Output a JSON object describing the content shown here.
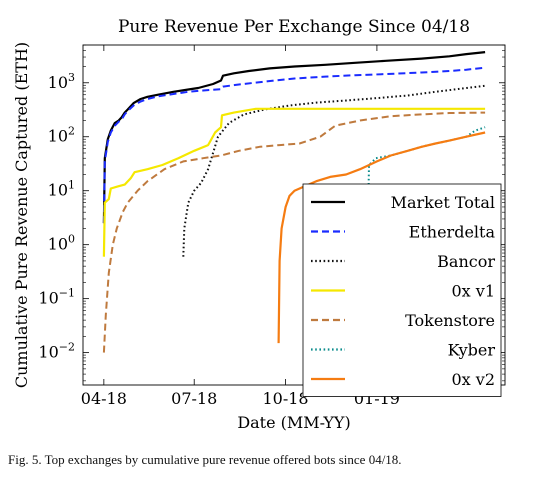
{
  "caption": "Fig. 5.  Top exchanges by cumulative pure revenue offered bots since 04/18.",
  "chart_data": {
    "type": "line",
    "title": "Pure Revenue Per Exchange Since 04/18",
    "xlabel": "Date (MM-YY)",
    "ylabel": "Cumulative Pure Revenue Captured (ETH)",
    "y_scale": "log",
    "ylim_exponents": [
      -2.6,
      3.7
    ],
    "y_ticks": [
      {
        "base": "10",
        "exp": "3",
        "value": 1000
      },
      {
        "base": "10",
        "exp": "2",
        "value": 100
      },
      {
        "base": "10",
        "exp": "1",
        "value": 10
      },
      {
        "base": "10",
        "exp": "0",
        "value": 1
      },
      {
        "base": "10",
        "exp": "−1",
        "value": 0.1
      },
      {
        "base": "10",
        "exp": "−2",
        "value": 0.01
      }
    ],
    "x_range": [
      "2018-03-11",
      "2019-05-10"
    ],
    "x_ticks": [
      {
        "label": "04-18",
        "date": "2018-04-01"
      },
      {
        "label": "07-18",
        "date": "2018-07-01"
      },
      {
        "label": "10-18",
        "date": "2018-10-01"
      },
      {
        "label": "01-19",
        "date": "2019-01-01"
      }
    ],
    "legend_position": "bottom-right",
    "series": [
      {
        "name": "Market Total",
        "color": "#000000",
        "dash": "solid",
        "points": [
          [
            "2018-04-01",
            2.5
          ],
          [
            "2018-04-02",
            40
          ],
          [
            "2018-04-05",
            90
          ],
          [
            "2018-04-08",
            130
          ],
          [
            "2018-04-12",
            180
          ],
          [
            "2018-04-16",
            200
          ],
          [
            "2018-04-19",
            230
          ],
          [
            "2018-04-22",
            280
          ],
          [
            "2018-04-25",
            320
          ],
          [
            "2018-05-01",
            420
          ],
          [
            "2018-05-08",
            500
          ],
          [
            "2018-05-15",
            550
          ],
          [
            "2018-05-25",
            600
          ],
          [
            "2018-06-10",
            680
          ],
          [
            "2018-06-25",
            750
          ],
          [
            "2018-07-05",
            800
          ],
          [
            "2018-07-20",
            950
          ],
          [
            "2018-07-28",
            1100
          ],
          [
            "2018-07-30",
            1350
          ],
          [
            "2018-08-10",
            1500
          ],
          [
            "2018-08-25",
            1650
          ],
          [
            "2018-09-15",
            1850
          ],
          [
            "2018-10-10",
            2000
          ],
          [
            "2018-11-10",
            2150
          ],
          [
            "2018-12-10",
            2350
          ],
          [
            "2019-01-10",
            2550
          ],
          [
            "2019-02-15",
            2800
          ],
          [
            "2019-03-15",
            3100
          ],
          [
            "2019-04-01",
            3400
          ],
          [
            "2019-04-20",
            3700
          ]
        ]
      },
      {
        "name": "Etherdelta",
        "color": "#1a2bff",
        "dash": "dashed",
        "points": [
          [
            "2018-04-01",
            2.5
          ],
          [
            "2018-04-02",
            35
          ],
          [
            "2018-04-05",
            80
          ],
          [
            "2018-04-08",
            120
          ],
          [
            "2018-04-12",
            160
          ],
          [
            "2018-04-16",
            190
          ],
          [
            "2018-04-19",
            210
          ],
          [
            "2018-04-22",
            260
          ],
          [
            "2018-04-25",
            300
          ],
          [
            "2018-05-01",
            380
          ],
          [
            "2018-05-08",
            450
          ],
          [
            "2018-05-15",
            500
          ],
          [
            "2018-05-25",
            560
          ],
          [
            "2018-06-10",
            620
          ],
          [
            "2018-06-25",
            680
          ],
          [
            "2018-07-10",
            720
          ],
          [
            "2018-07-28",
            760
          ],
          [
            "2018-07-30",
            850
          ],
          [
            "2018-08-15",
            930
          ],
          [
            "2018-09-10",
            1050
          ],
          [
            "2018-10-10",
            1200
          ],
          [
            "2018-11-10",
            1300
          ],
          [
            "2018-12-10",
            1380
          ],
          [
            "2019-01-10",
            1450
          ],
          [
            "2019-02-15",
            1550
          ],
          [
            "2019-03-15",
            1650
          ],
          [
            "2019-04-01",
            1750
          ],
          [
            "2019-04-20",
            1900
          ]
        ]
      },
      {
        "name": "Bancor",
        "color": "#111111",
        "dash": "dotted",
        "points": [
          [
            "2018-06-20",
            0.6
          ],
          [
            "2018-06-21",
            2
          ],
          [
            "2018-06-25",
            6
          ],
          [
            "2018-07-01",
            10
          ],
          [
            "2018-07-08",
            14
          ],
          [
            "2018-07-15",
            25
          ],
          [
            "2018-07-25",
            100
          ],
          [
            "2018-08-05",
            180
          ],
          [
            "2018-08-20",
            260
          ],
          [
            "2018-09-10",
            320
          ],
          [
            "2018-10-05",
            380
          ],
          [
            "2018-11-01",
            430
          ],
          [
            "2018-12-01",
            470
          ],
          [
            "2019-01-01",
            520
          ],
          [
            "2019-02-01",
            580
          ],
          [
            "2019-03-01",
            680
          ],
          [
            "2019-04-01",
            800
          ],
          [
            "2019-04-20",
            880
          ]
        ]
      },
      {
        "name": "0x v1",
        "color": "#f5e800",
        "dash": "solid",
        "points": [
          [
            "2018-04-01",
            0.6
          ],
          [
            "2018-04-02",
            6
          ],
          [
            "2018-04-06",
            7
          ],
          [
            "2018-04-08",
            11
          ],
          [
            "2018-04-15",
            12
          ],
          [
            "2018-04-22",
            13
          ],
          [
            "2018-04-28",
            17
          ],
          [
            "2018-05-02",
            22
          ],
          [
            "2018-05-15",
            25
          ],
          [
            "2018-05-30",
            30
          ],
          [
            "2018-06-15",
            40
          ],
          [
            "2018-07-01",
            55
          ],
          [
            "2018-07-15",
            70
          ],
          [
            "2018-07-22",
            120
          ],
          [
            "2018-07-28",
            150
          ],
          [
            "2018-07-29",
            250
          ],
          [
            "2018-08-10",
            280
          ],
          [
            "2018-09-01",
            330
          ],
          [
            "2018-10-01",
            330
          ],
          [
            "2018-11-01",
            330
          ],
          [
            "2018-12-01",
            330
          ],
          [
            "2019-01-01",
            330
          ],
          [
            "2019-02-01",
            330
          ],
          [
            "2019-03-01",
            330
          ],
          [
            "2019-04-20",
            330
          ]
        ]
      },
      {
        "name": "Tokenstore",
        "color": "#bf7a3e",
        "dash": "dashed",
        "points": [
          [
            "2018-04-01",
            0.01
          ],
          [
            "2018-04-03",
            0.05
          ],
          [
            "2018-04-06",
            0.3
          ],
          [
            "2018-04-10",
            1
          ],
          [
            "2018-04-14",
            2
          ],
          [
            "2018-04-20",
            4
          ],
          [
            "2018-04-25",
            6
          ],
          [
            "2018-05-05",
            10
          ],
          [
            "2018-05-15",
            15
          ],
          [
            "2018-06-01",
            25
          ],
          [
            "2018-06-20",
            35
          ],
          [
            "2018-07-10",
            40
          ],
          [
            "2018-07-28",
            45
          ],
          [
            "2018-08-15",
            55
          ],
          [
            "2018-09-05",
            65
          ],
          [
            "2018-09-25",
            70
          ],
          [
            "2018-10-15",
            75
          ],
          [
            "2018-11-05",
            100
          ],
          [
            "2018-11-20",
            160
          ],
          [
            "2018-12-15",
            200
          ],
          [
            "2019-01-15",
            240
          ],
          [
            "2019-02-15",
            260
          ],
          [
            "2019-03-15",
            275
          ],
          [
            "2019-04-20",
            280
          ]
        ]
      },
      {
        "name": "Kyber",
        "color": "#0b8c8c",
        "dash": "dotted",
        "points": [
          [
            "2018-12-22",
            0.01
          ],
          [
            "2018-12-23",
            3
          ],
          [
            "2018-12-24",
            30
          ],
          [
            "2018-12-31",
            40
          ],
          [
            "2019-01-15",
            45
          ],
          [
            "2019-02-01",
            55
          ],
          [
            "2019-02-15",
            65
          ],
          [
            "2019-03-01",
            75
          ],
          [
            "2019-03-15",
            85
          ],
          [
            "2019-04-01",
            100
          ],
          [
            "2019-04-10",
            130
          ],
          [
            "2019-04-20",
            150
          ]
        ]
      },
      {
        "name": "0x v2",
        "color": "#f57c12",
        "dash": "solid",
        "points": [
          [
            "2018-09-24",
            0.015
          ],
          [
            "2018-09-25",
            0.5
          ],
          [
            "2018-09-27",
            2
          ],
          [
            "2018-10-01",
            5
          ],
          [
            "2018-10-05",
            8
          ],
          [
            "2018-10-10",
            10
          ],
          [
            "2018-10-20",
            12
          ],
          [
            "2018-11-01",
            15
          ],
          [
            "2018-11-15",
            18
          ],
          [
            "2018-12-01",
            20
          ],
          [
            "2018-12-15",
            25
          ],
          [
            "2019-01-01",
            35
          ],
          [
            "2019-01-15",
            45
          ],
          [
            "2019-02-01",
            55
          ],
          [
            "2019-02-15",
            65
          ],
          [
            "2019-03-01",
            75
          ],
          [
            "2019-03-15",
            85
          ],
          [
            "2019-04-01",
            100
          ],
          [
            "2019-04-20",
            120
          ]
        ]
      }
    ]
  }
}
